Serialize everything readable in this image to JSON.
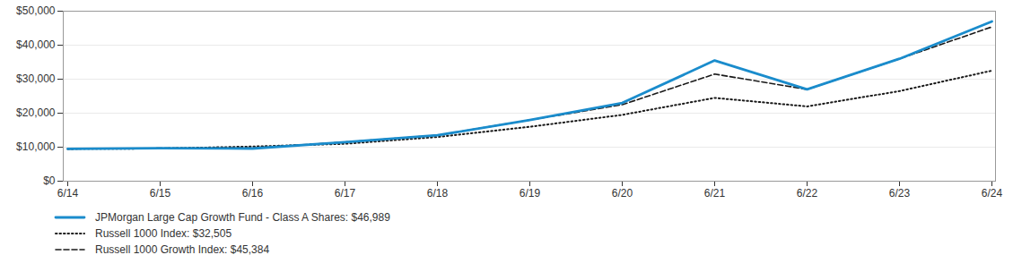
{
  "chart_data": {
    "type": "line",
    "categories": [
      "6/14",
      "6/15",
      "6/16",
      "6/17",
      "6/18",
      "6/19",
      "6/20",
      "6/21",
      "6/22",
      "6/23",
      "6/24"
    ],
    "series": [
      {
        "name": "JPMorgan Large Cap Growth Fund - Class A Shares: $46,989",
        "color": "#1a8ccc",
        "line_style": "solid",
        "values": [
          9500,
          9700,
          9600,
          11500,
          13500,
          18000,
          23000,
          35500,
          27000,
          36000,
          46989
        ]
      },
      {
        "name": "Russell 1000 Index: $32,505",
        "color": "#1a1a1a",
        "line_style": "dotted",
        "values": [
          9500,
          9600,
          10200,
          11000,
          13000,
          16000,
          19500,
          24500,
          22000,
          26500,
          32505
        ]
      },
      {
        "name": "Russell 1000 Growth Index: $45,384",
        "color": "#1a1a1a",
        "line_style": "dashed",
        "values": [
          9500,
          9700,
          9800,
          11500,
          13500,
          18000,
          22500,
          31500,
          27000,
          36000,
          45384
        ]
      }
    ],
    "ylim": [
      0,
      50000
    ],
    "yticks": [
      {
        "value": 0,
        "label": "$0"
      },
      {
        "value": 10000,
        "label": "$10,000"
      },
      {
        "value": 20000,
        "label": "$20,000"
      },
      {
        "value": 30000,
        "label": "$30,000"
      },
      {
        "value": 40000,
        "label": "$40,000"
      },
      {
        "value": 50000,
        "label": "$50,000"
      }
    ],
    "grid": true,
    "legend": "bottom"
  }
}
